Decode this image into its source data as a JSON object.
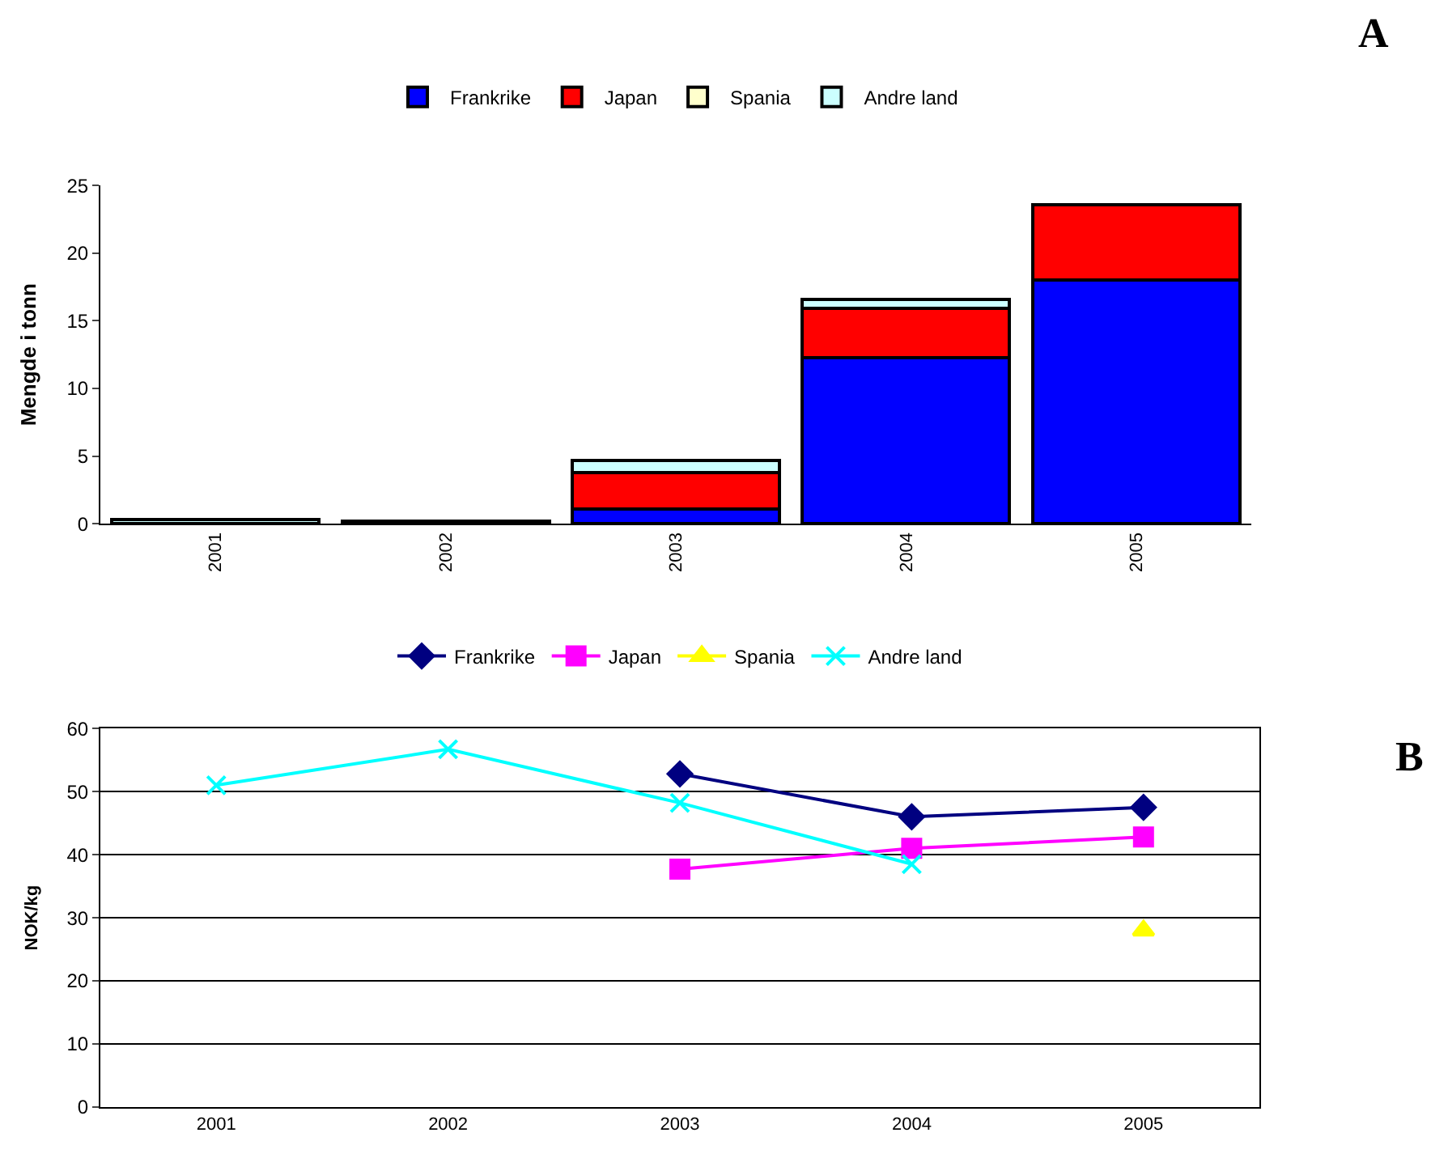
{
  "chart_data": [
    {
      "type": "bar",
      "stacked": true,
      "annotations": [
        "A"
      ],
      "ylabel": "Mengde i tonn",
      "categories": [
        "2001",
        "2002",
        "2003",
        "2004",
        "2005"
      ],
      "ylim": [
        0,
        25
      ],
      "yticks": [
        0,
        5,
        10,
        15,
        20,
        25
      ],
      "grid": false,
      "legend": "top",
      "series": [
        {
          "name": "Frankrike",
          "color": "#0000ff",
          "values": [
            null,
            null,
            1.1,
            12.3,
            18.0
          ]
        },
        {
          "name": "Japan",
          "color": "#ff0000",
          "values": [
            null,
            null,
            2.7,
            3.6,
            5.6
          ]
        },
        {
          "name": "Spania",
          "color": "#ffffcc",
          "values": [
            null,
            null,
            null,
            null,
            null
          ]
        },
        {
          "name": "Andre land",
          "color": "#ccffff",
          "values": [
            0.3,
            0.2,
            0.9,
            0.7,
            null
          ]
        }
      ]
    },
    {
      "type": "line",
      "annotations": [
        "B"
      ],
      "ylabel": "NOK/kg",
      "categories": [
        "2001",
        "2002",
        "2003",
        "2004",
        "2005"
      ],
      "ylim": [
        0,
        60
      ],
      "yticks": [
        0,
        10,
        20,
        30,
        40,
        50,
        60
      ],
      "grid": "y",
      "legend": "top",
      "series": [
        {
          "name": "Frankrike",
          "color": "#000080",
          "marker": "diamond",
          "values": [
            null,
            null,
            52.8,
            46.0,
            47.5
          ]
        },
        {
          "name": "Japan",
          "color": "#ff00ff",
          "marker": "square",
          "values": [
            null,
            null,
            37.7,
            41.0,
            42.8
          ]
        },
        {
          "name": "Spania",
          "color": "#ffff00",
          "marker": "triangle",
          "values": [
            null,
            null,
            null,
            null,
            28.0
          ]
        },
        {
          "name": "Andre land",
          "color": "#00ffff",
          "marker": "cross",
          "values": [
            51.0,
            56.7,
            48.2,
            38.5,
            null
          ]
        }
      ]
    }
  ]
}
